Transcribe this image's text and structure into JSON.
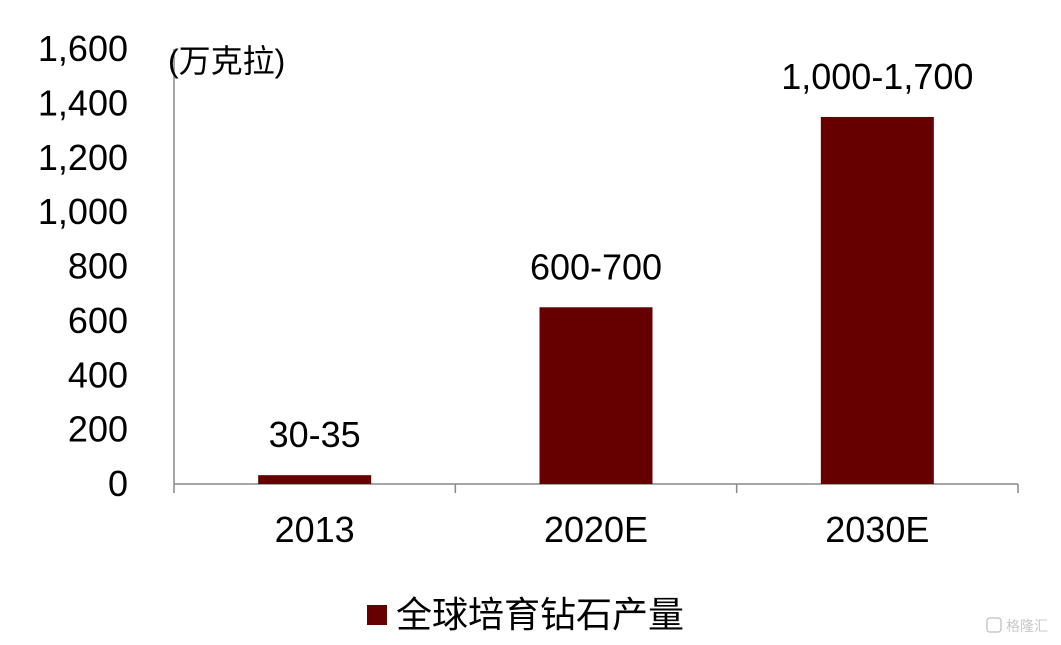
{
  "chart_data": {
    "type": "bar",
    "unit_label": "(万克拉)",
    "categories": [
      "2013",
      "2020E",
      "2030E"
    ],
    "series": [
      {
        "name": "全球培育钻石产量",
        "values": [
          32.5,
          650,
          1350
        ],
        "data_labels": [
          "30-35",
          "600-700",
          "1,000-1,700"
        ]
      }
    ],
    "ylim": [
      0,
      1600
    ],
    "yticks": [
      0,
      200,
      400,
      600,
      800,
      1000,
      1200,
      1400,
      1600
    ],
    "ytick_labels": [
      "0",
      "200",
      "400",
      "600",
      "800",
      "1,000",
      "1,200",
      "1,400",
      "1,600"
    ],
    "bar_color": "#660000",
    "legend_position": "bottom",
    "grid": false
  },
  "watermark": {
    "text": "格隆汇"
  }
}
